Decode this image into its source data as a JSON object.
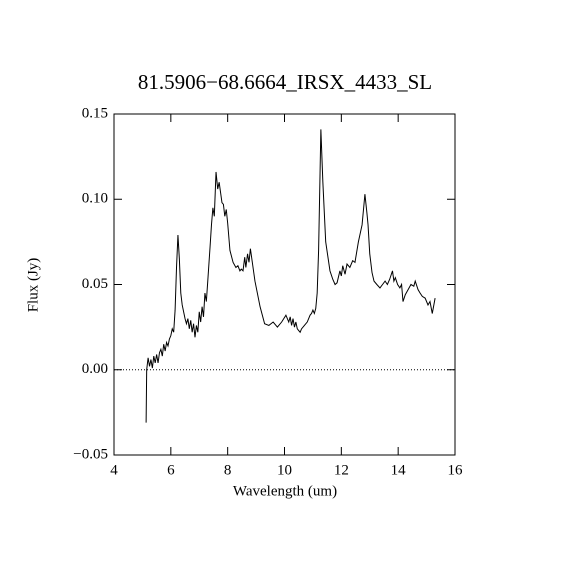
{
  "chart_data": {
    "type": "line",
    "title": "81.5906−68.6664_IRSX_4433_SL",
    "xlabel": "Wavelength (um)",
    "ylabel": "Flux (Jy)",
    "color": "#000000",
    "xlim": [
      4,
      16
    ],
    "ylim": [
      -0.05,
      0.15
    ],
    "xticks": [
      4,
      6,
      8,
      10,
      12,
      14,
      16
    ],
    "yticks": [
      {
        "value": -0.05,
        "label": "−0.05"
      },
      {
        "value": 0,
        "label": "0.00"
      },
      0.05,
      {
        "value": 0.1,
        "label": "0.10"
      },
      0.15
    ],
    "reference_line": 0,
    "x": [
      5.13,
      5.15,
      5.2,
      5.25,
      5.3,
      5.35,
      5.4,
      5.45,
      5.5,
      5.55,
      5.6,
      5.65,
      5.7,
      5.75,
      5.8,
      5.85,
      5.9,
      5.95,
      6.0,
      6.05,
      6.1,
      6.15,
      6.2,
      6.25,
      6.3,
      6.35,
      6.4,
      6.5,
      6.55,
      6.6,
      6.65,
      6.7,
      6.75,
      6.8,
      6.85,
      6.9,
      6.95,
      7.0,
      7.05,
      7.1,
      7.15,
      7.2,
      7.25,
      7.3,
      7.38,
      7.43,
      7.48,
      7.53,
      7.59,
      7.65,
      7.7,
      7.75,
      7.8,
      7.85,
      7.9,
      7.95,
      8.0,
      8.08,
      8.19,
      8.29,
      8.36,
      8.43,
      8.48,
      8.54,
      8.6,
      8.64,
      8.7,
      8.75,
      8.8,
      8.96,
      9.14,
      9.3,
      9.45,
      9.6,
      9.75,
      9.9,
      10.05,
      10.15,
      10.2,
      10.25,
      10.3,
      10.35,
      10.4,
      10.45,
      10.5,
      10.55,
      10.6,
      10.7,
      10.8,
      10.9,
      10.95,
      11.0,
      11.05,
      11.1,
      11.15,
      11.2,
      11.28,
      11.35,
      11.45,
      11.6,
      11.7,
      11.78,
      11.85,
      11.95,
      12.0,
      12.05,
      12.13,
      12.2,
      12.3,
      12.4,
      12.48,
      12.6,
      12.73,
      12.83,
      12.9,
      12.94,
      13.0,
      13.08,
      13.15,
      13.25,
      13.36,
      13.45,
      13.54,
      13.62,
      13.7,
      13.8,
      13.85,
      13.9,
      13.98,
      14.06,
      14.12,
      14.17,
      14.25,
      14.35,
      14.45,
      14.55,
      14.6,
      14.7,
      14.77,
      14.85,
      14.95,
      15.05,
      15.12,
      15.2,
      15.3
    ],
    "values": [
      -0.031,
      0.0,
      0.007,
      0.002,
      0.006,
      0.001,
      0.008,
      0.004,
      0.009,
      0.004,
      0.01,
      0.012,
      0.008,
      0.015,
      0.011,
      0.016,
      0.014,
      0.018,
      0.02,
      0.024,
      0.022,
      0.035,
      0.06,
      0.079,
      0.065,
      0.045,
      0.038,
      0.03,
      0.027,
      0.03,
      0.024,
      0.029,
      0.022,
      0.027,
      0.019,
      0.026,
      0.022,
      0.034,
      0.028,
      0.037,
      0.031,
      0.045,
      0.04,
      0.052,
      0.072,
      0.085,
      0.095,
      0.09,
      0.116,
      0.106,
      0.11,
      0.104,
      0.098,
      0.097,
      0.09,
      0.094,
      0.086,
      0.07,
      0.063,
      0.06,
      0.061,
      0.058,
      0.059,
      0.058,
      0.066,
      0.06,
      0.068,
      0.063,
      0.071,
      0.052,
      0.037,
      0.027,
      0.026,
      0.028,
      0.025,
      0.028,
      0.032,
      0.028,
      0.031,
      0.026,
      0.03,
      0.025,
      0.028,
      0.024,
      0.023,
      0.022,
      0.024,
      0.026,
      0.028,
      0.032,
      0.033,
      0.035,
      0.033,
      0.036,
      0.045,
      0.07,
      0.141,
      0.11,
      0.075,
      0.058,
      0.053,
      0.05,
      0.051,
      0.058,
      0.055,
      0.061,
      0.056,
      0.062,
      0.06,
      0.064,
      0.063,
      0.075,
      0.085,
      0.103,
      0.092,
      0.085,
      0.068,
      0.057,
      0.052,
      0.05,
      0.048,
      0.05,
      0.052,
      0.05,
      0.053,
      0.058,
      0.052,
      0.054,
      0.05,
      0.048,
      0.05,
      0.04,
      0.044,
      0.047,
      0.05,
      0.049,
      0.052,
      0.047,
      0.045,
      0.043,
      0.042,
      0.038,
      0.04,
      0.033,
      0.042
    ]
  }
}
